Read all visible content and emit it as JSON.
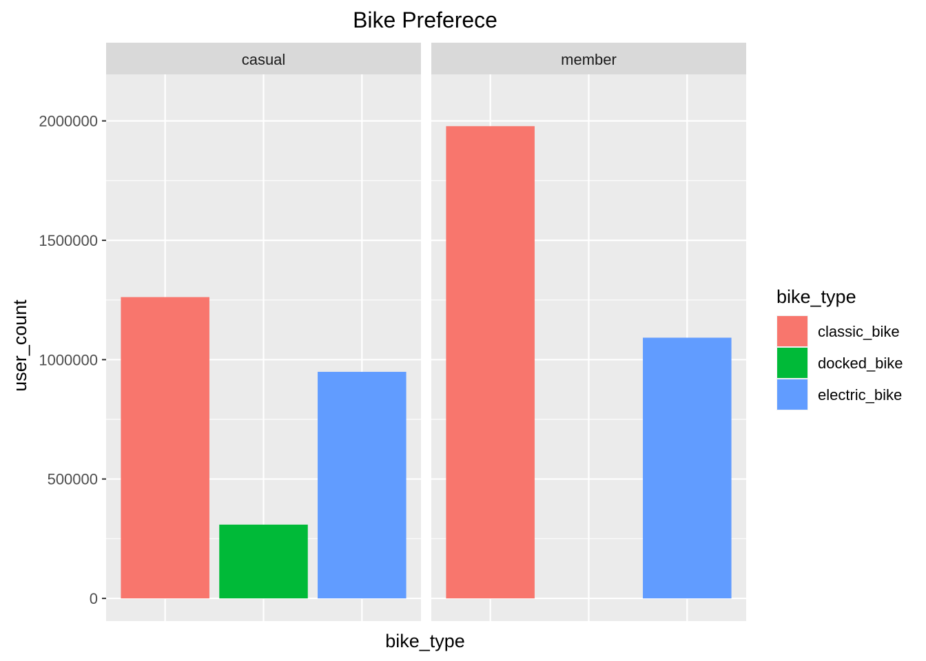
{
  "chart_data": {
    "type": "bar",
    "title": "Bike Preferece",
    "xlabel": "bike_type",
    "ylabel": "user_count",
    "ylim": [
      -95000,
      2195000
    ],
    "yticks": [
      0,
      500000,
      1000000,
      1500000,
      2000000
    ],
    "ytick_labels": [
      "0",
      "500000",
      "1000000",
      "1500000",
      "2000000"
    ],
    "grid": true,
    "legend_position": "right",
    "legend_title": "bike_type",
    "categories": [
      "classic_bike",
      "docked_bike",
      "electric_bike"
    ],
    "colors": {
      "classic_bike": "#F8766D",
      "docked_bike": "#00BA38",
      "electric_bike": "#619CFF"
    },
    "facets": [
      {
        "label": "casual",
        "bars": [
          {
            "category": "classic_bike",
            "value": 1262000
          },
          {
            "category": "docked_bike",
            "value": 309000
          },
          {
            "category": "electric_bike",
            "value": 949000
          }
        ]
      },
      {
        "label": "member",
        "bars": [
          {
            "category": "classic_bike",
            "value": 1978000
          },
          {
            "category": "electric_bike",
            "value": 1092000
          }
        ]
      }
    ]
  }
}
